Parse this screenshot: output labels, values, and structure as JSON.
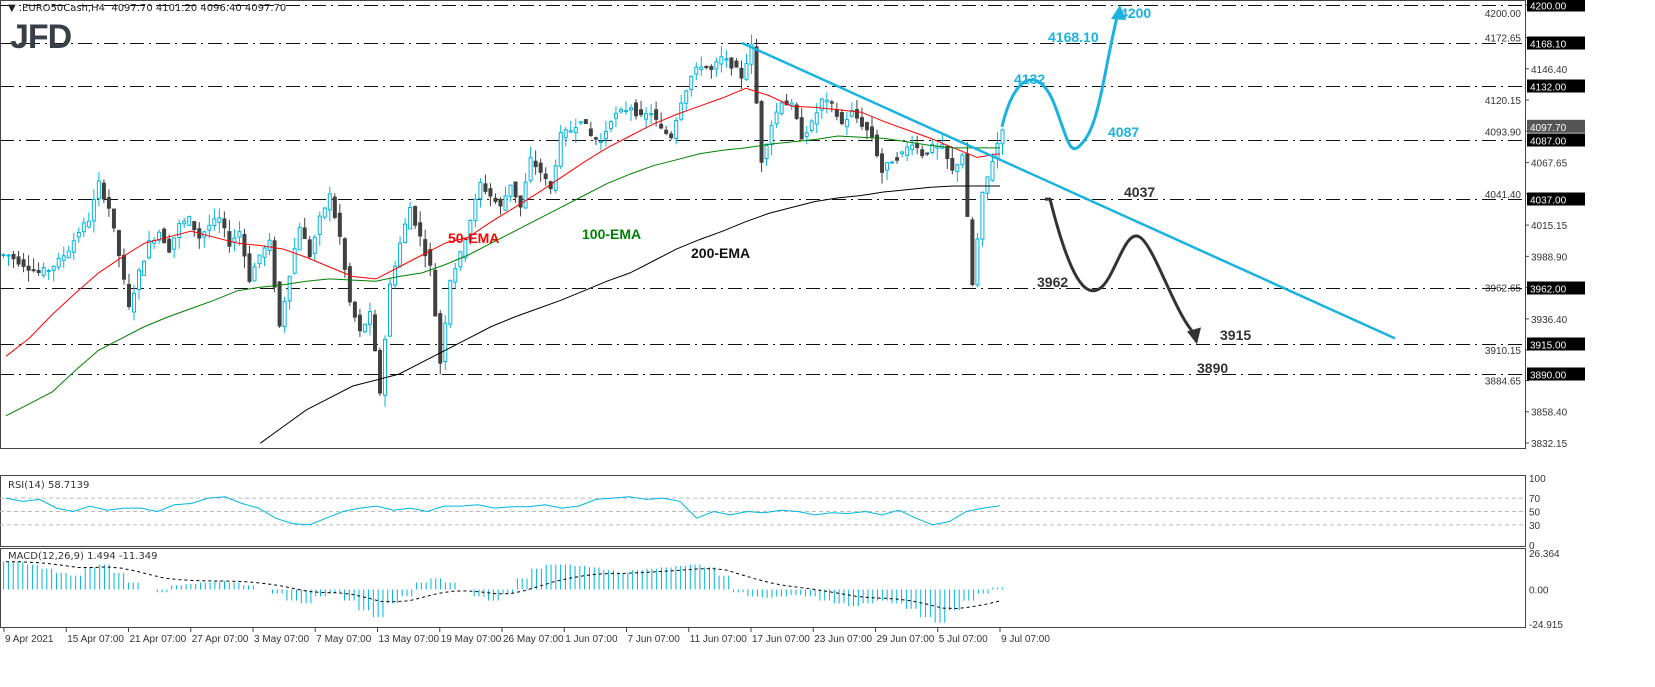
{
  "header": {
    "symbol": ".EURO50Cash,H4",
    "ohlc": "4097.70 4101.20 4096.40 4097.70",
    "logo": "JFD"
  },
  "colors": {
    "bull": "#00b4e0",
    "bear": "#404040",
    "ema50": "#ff0000",
    "ema100": "#008000",
    "ema200": "#000000",
    "trend": "#1ab2de",
    "bearish_path": "#333333"
  },
  "annotations": {
    "t4200": "4200",
    "t4168": "4168.10",
    "t4132": "4132",
    "t4087": "4087",
    "t4037": "4037",
    "t3962": "3962",
    "t3915": "3915",
    "t3890": "3890",
    "ema50": "50-EMA",
    "ema100": "100-EMA",
    "ema200": "200-EMA"
  },
  "rsi": {
    "label": "RSI(14) 58.7139"
  },
  "macd": {
    "label": "MACD(12,26,9) 1.494 -11.349"
  },
  "chart_data": [
    {
      "type": "candlestick",
      "title": ".EURO50Cash,H4",
      "ylim": [
        3832.15,
        4200
      ],
      "y_ticks": [
        "4200.00",
        "4172.65",
        "4146.40",
        "4120.15",
        "4093.90",
        "4067.65",
        "4041.40",
        "4015.15",
        "3988.90",
        "3962.65",
        "3936.40",
        "3910.15",
        "3884.65",
        "3858.40",
        "3832.15"
      ],
      "x_ticks": [
        "9 Apr 2021",
        "15 Apr 07:00",
        "21 Apr 07:00",
        "27 Apr 07:00",
        "3 May 07:00",
        "7 May 07:00",
        "13 May 07:00",
        "19 May 07:00",
        "26 May 07:00",
        "1 Jun 07:00",
        "7 Jun 07:00",
        "11 Jun 07:00",
        "17 Jun 07:00",
        "23 Jun 07:00",
        "29 Jun 07:00",
        "5 Jul 07:00",
        "9 Jul 07:00"
      ],
      "closes": [
        3990,
        3985,
        3980,
        3975,
        3978,
        3985,
        3995,
        4010,
        4020,
        4050,
        4030,
        3990,
        3945,
        3975,
        4000,
        4010,
        3995,
        4015,
        4020,
        4005,
        4015,
        4020,
        4000,
        4010,
        3970,
        3990,
        4000,
        3930,
        3975,
        4015,
        3990,
        4020,
        4040,
        4005,
        3950,
        3925,
        3940,
        3875,
        3965,
        4000,
        4030,
        4005,
        3980,
        3900,
        3970,
        3990,
        4020,
        4050,
        4040,
        4030,
        4050,
        4030,
        4070,
        4060,
        4045,
        4090,
        4095,
        4105,
        4090,
        4085,
        4105,
        4110,
        4115,
        4105,
        4110,
        4095,
        4090,
        4120,
        4140,
        4150,
        4145,
        4155,
        4150,
        4140,
        4165,
        4070,
        4100,
        4120,
        4115,
        4090,
        4100,
        4120,
        4115,
        4100,
        4110,
        4100,
        4090,
        4060,
        4070,
        4075,
        4085,
        4075,
        4080,
        4080,
        4060,
        4075,
        3965,
        4040,
        4070,
        4097.7
      ],
      "ema50": [
        3905,
        3920,
        3940,
        3958,
        3975,
        3988,
        4000,
        4005,
        4010,
        4005,
        4000,
        3998,
        3995,
        3988,
        3980,
        3972,
        3970,
        3980,
        3990,
        4000,
        4005,
        4018,
        4030,
        4042,
        4055,
        4068,
        4080,
        4090,
        4100,
        4108,
        4115,
        4122,
        4130,
        4124,
        4115,
        4114,
        4112,
        4110,
        4102,
        4095,
        4088,
        4080,
        4072,
        4075
      ],
      "ema100": [
        3855,
        3865,
        3875,
        3893,
        3910,
        3920,
        3930,
        3938,
        3945,
        3952,
        3960,
        3963,
        3965,
        3968,
        3970,
        3969,
        3968,
        3972,
        3975,
        3982,
        3990,
        4000,
        4010,
        4020,
        4030,
        4040,
        4050,
        4058,
        4065,
        4070,
        4075,
        4078,
        4080,
        4083,
        4085,
        4087,
        4090,
        4089,
        4088,
        4085,
        4082,
        4080,
        4080,
        4080
      ],
      "ema200": [
        null,
        null,
        null,
        null,
        null,
        null,
        null,
        null,
        null,
        null,
        null,
        3832,
        3846,
        3860,
        3870,
        3880,
        3885,
        3890,
        3900,
        3910,
        3920,
        3930,
        3938,
        3945,
        3952,
        3960,
        3968,
        3975,
        3985,
        3995,
        4003,
        4010,
        4018,
        4025,
        4030,
        4035,
        4038,
        4040,
        4043,
        4045,
        4047,
        4048,
        4048,
        4048
      ],
      "horizontal_levels": [
        4200,
        4168.1,
        4132,
        4087,
        4037,
        3962,
        3915,
        3890
      ],
      "current_price": 4097.7,
      "trendline": {
        "from": 4168.1,
        "to": 3920
      },
      "bullish_scenario": [
        4097.7,
        4132,
        4087,
        4200
      ],
      "bearish_scenario": [
        4037,
        3962,
        4005,
        3915
      ]
    },
    {
      "type": "line",
      "title": "RSI(14) 58.7139",
      "ylim": [
        0,
        100
      ],
      "y_ticks": [
        "100",
        "70",
        "50",
        "30",
        "0"
      ],
      "levels": [
        70,
        50,
        30
      ],
      "values": [
        70,
        65,
        68,
        55,
        50,
        58,
        52,
        55,
        55,
        50,
        60,
        62,
        70,
        72,
        62,
        55,
        40,
        32,
        30,
        40,
        50,
        55,
        58,
        52,
        55,
        50,
        58,
        58,
        60,
        55,
        57,
        57,
        60,
        55,
        58,
        68,
        70,
        72,
        68,
        70,
        65,
        40,
        50,
        45,
        50,
        48,
        52,
        50,
        45,
        48,
        47,
        50,
        45,
        52,
        40,
        30,
        35,
        50,
        55,
        58.7
      ]
    },
    {
      "type": "bar",
      "title": "MACD(12,26,9) 1.494 -11.349",
      "ylim": [
        -24.915,
        26.364
      ],
      "y_ticks": [
        "26.364",
        "0.00",
        "-24.915"
      ],
      "values": [
        20,
        20,
        18,
        15,
        12,
        10,
        16,
        18,
        12,
        5,
        0,
        -2,
        3,
        4,
        5,
        6,
        5,
        3,
        0,
        -3,
        -8,
        -10,
        -5,
        -3,
        -8,
        -15,
        -20,
        -10,
        -5,
        5,
        8,
        5,
        0,
        -5,
        -8,
        -3,
        8,
        15,
        18,
        18,
        17,
        16,
        14,
        12,
        14,
        15,
        16,
        17,
        18,
        16,
        10,
        -2,
        -5,
        -6,
        -5,
        -4,
        -5,
        -8,
        -10,
        -12,
        -10,
        -8,
        -10,
        -14,
        -20,
        -24,
        -15,
        -8,
        -3,
        1.494
      ]
    }
  ]
}
